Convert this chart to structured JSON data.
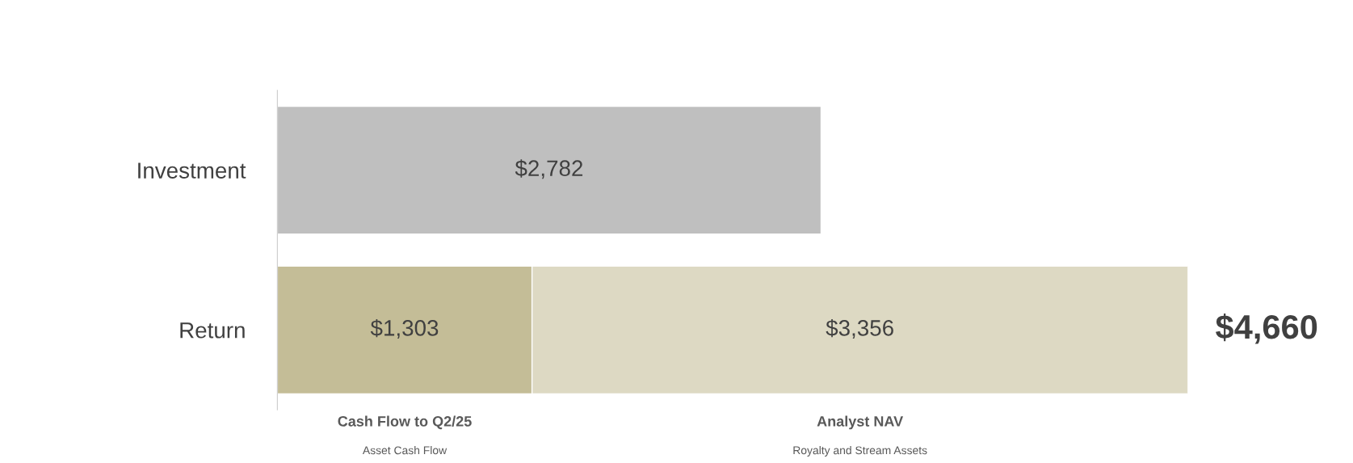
{
  "chart_data": {
    "type": "bar",
    "orientation": "horizontal",
    "stacked": true,
    "categories": [
      "Investment",
      "Return"
    ],
    "series": [
      {
        "color": "#bfbfbf",
        "values": [
          2782,
          null
        ],
        "value_labels": [
          "$2,782",
          null
        ]
      },
      {
        "name": "Cash Flow to Q2/25",
        "color": "#c4bd97",
        "values": [
          null,
          1303
        ],
        "value_labels": [
          null,
          "$1,303"
        ]
      },
      {
        "name": "Analyst NAV",
        "color": "#ddd9c3",
        "values": [
          null,
          3356
        ],
        "value_labels": [
          null,
          "$3,356"
        ]
      }
    ],
    "totals": [
      null,
      "$4,660"
    ],
    "annotations": [
      "Asset Cash Flow",
      "Royalty and Stream Assets"
    ],
    "grid": false,
    "legend": "bottom"
  }
}
